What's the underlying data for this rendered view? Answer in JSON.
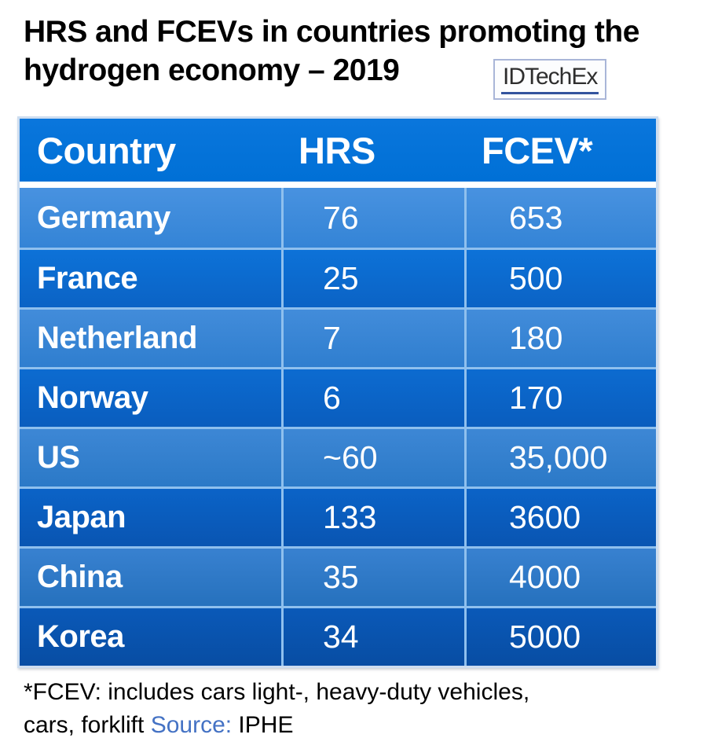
{
  "title": "HRS and FCEVs in countries promoting the\nhydrogen economy – 2019",
  "logo": {
    "text": "IDTechEx"
  },
  "table": {
    "headers": [
      "Country",
      "HRS",
      "FCEV*"
    ],
    "rows": [
      {
        "country": "Germany",
        "hrs": "76",
        "fcev": "653",
        "shade": "light",
        "bg_top": "#4892e0",
        "bg_bottom": "#3484d6"
      },
      {
        "country": "France",
        "hrs": "25",
        "fcev": "500",
        "shade": "dark",
        "bg_top": "#0d72d8",
        "bg_bottom": "#0b63c5"
      },
      {
        "country": "Netherland",
        "hrs": "7",
        "fcev": "180",
        "shade": "light",
        "bg_top": "#428cda",
        "bg_bottom": "#2f7ecf"
      },
      {
        "country": "Norway",
        "hrs": "6",
        "fcev": "170",
        "shade": "dark",
        "bg_top": "#0c6bd0",
        "bg_bottom": "#0a5dbe"
      },
      {
        "country": "US",
        "hrs": "~60",
        "fcev": "35,000",
        "shade": "light",
        "bg_top": "#3d87d5",
        "bg_bottom": "#2b79c7"
      },
      {
        "country": "Japan",
        "hrs": "133",
        "fcev": "3600",
        "shade": "dark",
        "bg_top": "#0b63c7",
        "bg_bottom": "#0955b2"
      },
      {
        "country": "China",
        "hrs": "35",
        "fcev": "4000",
        "shade": "light",
        "bg_top": "#3881d0",
        "bg_bottom": "#2671bd"
      },
      {
        "country": "Korea",
        "hrs": "34",
        "fcev": "5000",
        "shade": "dark",
        "bg_top": "#0a59b8",
        "bg_bottom": "#084da3"
      }
    ]
  },
  "footnote": {
    "line1": "*FCEV: includes cars light-, heavy-duty vehicles,",
    "line2_prefix": "cars, forklift ",
    "source_label": "Source:",
    "source_value": " IPHE"
  },
  "colors": {
    "header_bg_top": "#0a76dc",
    "header_bg_bottom": "#0070d6",
    "row_separator": "#8fc0ee",
    "outer_border": "#cdddf0",
    "source_link": "#4472c4",
    "header_text": "#ffffff",
    "body_text": "#ffffff"
  },
  "chart_data": {
    "type": "table",
    "title": "HRS and FCEVs in countries promoting the hydrogen economy – 2019",
    "columns": [
      "Country",
      "HRS",
      "FCEV*"
    ],
    "rows": [
      [
        "Germany",
        "76",
        "653"
      ],
      [
        "France",
        "25",
        "500"
      ],
      [
        "Netherland",
        "7",
        "180"
      ],
      [
        "Norway",
        "6",
        "170"
      ],
      [
        "US",
        "~60",
        "35,000"
      ],
      [
        "Japan",
        "133",
        "3600"
      ],
      [
        "China",
        "35",
        "4000"
      ],
      [
        "Korea",
        "34",
        "5000"
      ]
    ],
    "footnote": "*FCEV: includes cars light-, heavy-duty vehicles, cars, forklift Source: IPHE",
    "source": "IPHE",
    "legend_position": "none",
    "grid": false
  }
}
